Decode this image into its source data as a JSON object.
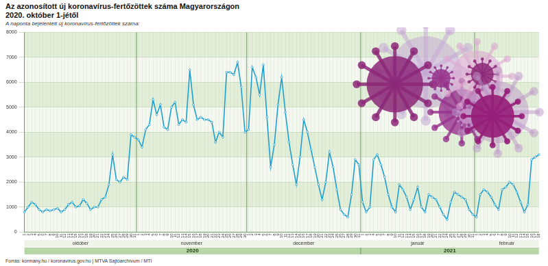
{
  "chart_data": {
    "type": "line",
    "title": "Az azonosított új koronavírus-fertőzöttek száma Magyarországon",
    "subtitle": "2020. október 1-jétől",
    "axis_note": "A naponta bejelentett új koronavírus-fertőzöttek száma:",
    "source": "Forrás: kormany.hu / koronavirus.gov.hu | MTVA Sajtóarchívum / MTI",
    "categories": [
      "1",
      "2",
      "3",
      "4",
      "5",
      "6",
      "7",
      "8",
      "9",
      "10",
      "11",
      "12",
      "13",
      "14",
      "15",
      "16",
      "17",
      "18",
      "19",
      "20",
      "21",
      "22",
      "23",
      "24",
      "25",
      "26",
      "27",
      "28",
      "29",
      "30",
      "31",
      "1",
      "2",
      "3",
      "4",
      "5",
      "6",
      "7",
      "8",
      "9",
      "10",
      "11",
      "12",
      "13",
      "14",
      "15",
      "16",
      "17",
      "18",
      "19",
      "20",
      "21",
      "22",
      "23",
      "24",
      "25",
      "26",
      "27",
      "28",
      "29",
      "30",
      "1",
      "2",
      "3",
      "4",
      "5",
      "6",
      "7",
      "8",
      "9",
      "10",
      "11",
      "12",
      "13",
      "14",
      "15",
      "16",
      "17",
      "18",
      "19",
      "20",
      "21",
      "22",
      "23",
      "24",
      "25",
      "26",
      "27",
      "28",
      "29",
      "30",
      "31",
      "1",
      "2",
      "3",
      "4",
      "5",
      "6",
      "7",
      "8",
      "9",
      "10",
      "11",
      "12",
      "13",
      "14",
      "15",
      "16",
      "17",
      "18",
      "19",
      "20",
      "21",
      "22",
      "23",
      "24",
      "25",
      "26",
      "27",
      "28",
      "29",
      "30",
      "31",
      "1",
      "2",
      "3",
      "4",
      "5",
      "6",
      "7",
      "8",
      "9",
      "10",
      "11",
      "12",
      "13",
      "14",
      "15",
      "16",
      "17",
      "18"
    ],
    "months": [
      {
        "name": "október",
        "days": 31
      },
      {
        "name": "november",
        "days": 30
      },
      {
        "name": "december",
        "days": 31
      },
      {
        "name": "január",
        "days": 31
      },
      {
        "name": "február",
        "days": 18
      }
    ],
    "years": [
      {
        "name": "2020",
        "months": 3
      },
      {
        "name": "2021",
        "months": 2
      }
    ],
    "values": [
      800,
      1000,
      1200,
      1100,
      900,
      800,
      900,
      850,
      900,
      950,
      800,
      900,
      1100,
      1200,
      1000,
      1050,
      1300,
      1150,
      900,
      1000,
      1000,
      1300,
      1400,
      1900,
      3100,
      2100,
      2000,
      2200,
      2100,
      3900,
      3800,
      3700,
      3400,
      4100,
      4300,
      5300,
      4700,
      5100,
      4200,
      4100,
      5000,
      5200,
      4300,
      4500,
      4400,
      6500,
      5100,
      4500,
      4600,
      4500,
      4500,
      4400,
      3600,
      4000,
      3800,
      6400,
      6400,
      6300,
      6800,
      5800,
      4000,
      4100,
      6600,
      6200,
      5500,
      6700,
      4600,
      2600,
      3500,
      5100,
      6200,
      4800,
      3600,
      2700,
      1900,
      3000,
      4500,
      4000,
      3300,
      2600,
      1900,
      1300,
      2000,
      3200,
      2600,
      1700,
      900,
      700,
      600,
      1500,
      2900,
      2700,
      1200,
      800,
      1000,
      2900,
      3100,
      2700,
      2200,
      1500,
      1000,
      800,
      1900,
      1700,
      1400,
      900,
      1300,
      1800,
      1000,
      800,
      1500,
      1400,
      1300,
      1000,
      700,
      500,
      1200,
      1600,
      1500,
      1400,
      1300,
      900,
      700,
      600,
      1500,
      1700,
      1600,
      1400,
      1100,
      900,
      1700,
      1800,
      2000,
      1900,
      1600,
      1200,
      800,
      1100,
      2900,
      3000,
      3100
    ],
    "color": "#1f9fd0",
    "marker": "circle",
    "ylim": [
      0,
      8000
    ],
    "yticks": [
      0,
      1000,
      2000,
      3000,
      4000,
      5000,
      6000,
      7000,
      8000
    ],
    "grid": true
  }
}
